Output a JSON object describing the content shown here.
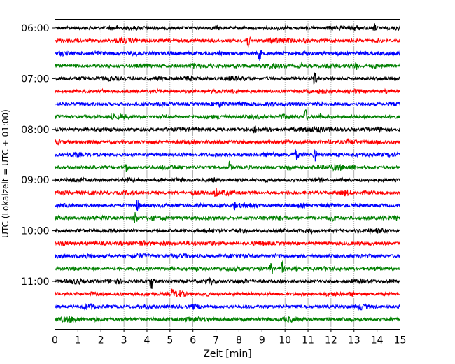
{
  "chart_data": {
    "type": "line",
    "chart_kind": "helicorder",
    "title": "",
    "xlabel": "Zeit  [min]",
    "ylabel": "UTC (Lokalzeit = UTC + 01:00)",
    "xlim": [
      0,
      15
    ],
    "x_ticks": [
      0,
      1,
      2,
      3,
      4,
      5,
      6,
      7,
      8,
      9,
      10,
      11,
      12,
      13,
      14,
      15
    ],
    "grid": "vertical dotted",
    "legend": "none",
    "trace_interval_minutes": 15,
    "first_trace_time": "06:00",
    "trace_count": 24,
    "trace_colors": [
      "#000000",
      "#ff0000",
      "#0000ff",
      "#008000"
    ],
    "y_ticks": [
      {
        "label": "06:00",
        "trace_index": 0
      },
      {
        "label": "07:00",
        "trace_index": 4
      },
      {
        "label": "08:00",
        "trace_index": 8
      },
      {
        "label": "09:00",
        "trace_index": 12
      },
      {
        "label": "10:00",
        "trace_index": 16
      },
      {
        "label": "11:00",
        "trace_index": 20
      }
    ],
    "events": [
      {
        "trace_index": 0,
        "x": 13.9,
        "amp": 0.45
      },
      {
        "trace_index": 1,
        "x": 8.4,
        "amp": 0.9
      },
      {
        "trace_index": 2,
        "x": 8.9,
        "amp": 0.8
      },
      {
        "trace_index": 3,
        "x": 10.7,
        "amp": 0.5
      },
      {
        "trace_index": 3,
        "x": 13.1,
        "amp": 0.35
      },
      {
        "trace_index": 4,
        "x": 11.3,
        "amp": 0.8
      },
      {
        "trace_index": 6,
        "x": 8.0,
        "amp": 0.3
      },
      {
        "trace_index": 7,
        "x": 10.9,
        "amp": 0.85
      },
      {
        "trace_index": 7,
        "x": 11.5,
        "amp": 0.4
      },
      {
        "trace_index": 8,
        "x": 8.7,
        "amp": 0.5
      },
      {
        "trace_index": 10,
        "x": 11.3,
        "amp": 0.9
      },
      {
        "trace_index": 10,
        "x": 10.5,
        "amp": 0.45
      },
      {
        "trace_index": 11,
        "x": 7.6,
        "amp": 0.7
      },
      {
        "trace_index": 11,
        "x": 3.1,
        "amp": 0.55
      },
      {
        "trace_index": 12,
        "x": 6.9,
        "amp": 0.3
      },
      {
        "trace_index": 13,
        "x": 7.0,
        "amp": 0.6
      },
      {
        "trace_index": 14,
        "x": 3.6,
        "amp": 0.7
      },
      {
        "trace_index": 14,
        "x": 7.8,
        "amp": 0.4
      },
      {
        "trace_index": 15,
        "x": 3.5,
        "amp": 0.8
      },
      {
        "trace_index": 17,
        "x": 2.9,
        "amp": 0.2
      },
      {
        "trace_index": 19,
        "x": 9.4,
        "amp": 0.95
      },
      {
        "trace_index": 19,
        "x": 9.9,
        "amp": 0.85
      },
      {
        "trace_index": 20,
        "x": 4.2,
        "amp": 0.95
      },
      {
        "trace_index": 21,
        "x": 5.1,
        "amp": 0.45
      }
    ]
  }
}
